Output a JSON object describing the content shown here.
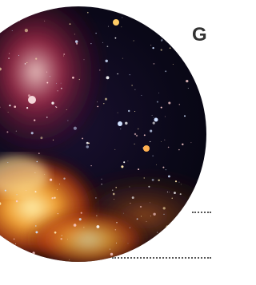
{
  "heading": "G"
}
